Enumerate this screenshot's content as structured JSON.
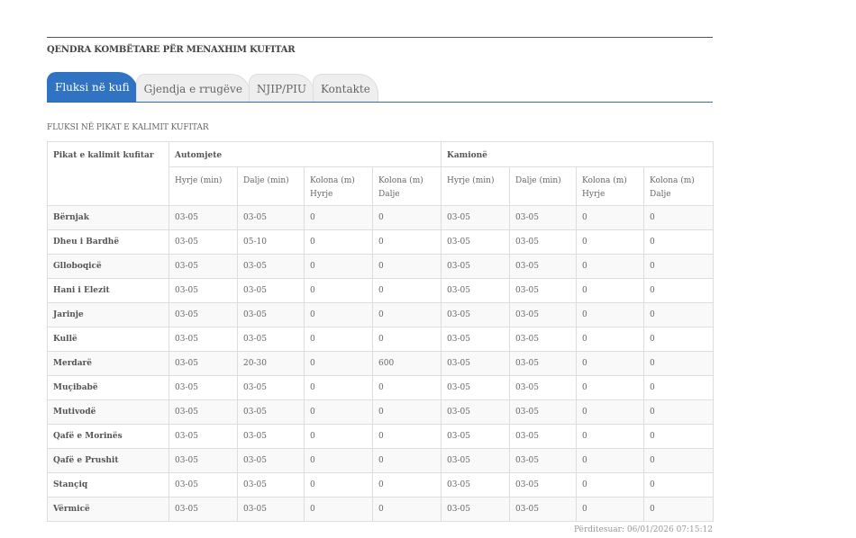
{
  "header": {
    "org_title": "QENDRA KOMBËTARE PËR MENAXHIM KUFITAR"
  },
  "tabs": [
    {
      "label": "Fluksi në kufi",
      "active": true
    },
    {
      "label": "Gjendja e rrugëve"
    },
    {
      "label": "NJIP/PIU"
    },
    {
      "label": "Kontakte"
    }
  ],
  "section_title": "FLUKSI NË PIKAT E KALIMIT KUFITAR",
  "table": {
    "col_point": "Pikat e kalimit kufitar",
    "group_cars": "Automjete",
    "group_trucks": "Kamionë",
    "subcols": [
      "Hyrje (min)",
      "Dalje (min)",
      "Kolona (m) Hyrje",
      "Kolona (m) Dalje",
      "Hyrje (min)",
      "Dalje (min)",
      "Kolona (m) Hyrje",
      "Kolona (m) Dalje"
    ],
    "rows": [
      [
        "Bërnjak",
        "03-05",
        "03-05",
        "0",
        "0",
        "03-05",
        "03-05",
        "0",
        "0"
      ],
      [
        "Dheu i Bardhë",
        "03-05",
        "05-10",
        "0",
        "0",
        "03-05",
        "03-05",
        "0",
        "0"
      ],
      [
        "Glloboqicë",
        "03-05",
        "03-05",
        "0",
        "0",
        "03-05",
        "03-05",
        "0",
        "0"
      ],
      [
        "Hani i Elezit",
        "03-05",
        "03-05",
        "0",
        "0",
        "03-05",
        "03-05",
        "0",
        "0"
      ],
      [
        "Jarinje",
        "03-05",
        "03-05",
        "0",
        "0",
        "03-05",
        "03-05",
        "0",
        "0"
      ],
      [
        "Kullë",
        "03-05",
        "03-05",
        "0",
        "0",
        "03-05",
        "03-05",
        "0",
        "0"
      ],
      [
        "Merdarë",
        "03-05",
        "20-30",
        "0",
        "600",
        "03-05",
        "03-05",
        "0",
        "0"
      ],
      [
        "Muçibabë",
        "03-05",
        "03-05",
        "0",
        "0",
        "03-05",
        "03-05",
        "0",
        "0"
      ],
      [
        "Mutivodë",
        "03-05",
        "03-05",
        "0",
        "0",
        "03-05",
        "03-05",
        "0",
        "0"
      ],
      [
        "Qafë e Morinës",
        "03-05",
        "03-05",
        "0",
        "0",
        "03-05",
        "03-05",
        "0",
        "0"
      ],
      [
        "Qafë e Prushit",
        "03-05",
        "03-05",
        "0",
        "0",
        "03-05",
        "03-05",
        "0",
        "0"
      ],
      [
        "Stançiq",
        "03-05",
        "03-05",
        "0",
        "0",
        "03-05",
        "03-05",
        "0",
        "0"
      ],
      [
        "Vërmicë",
        "03-05",
        "03-05",
        "0",
        "0",
        "03-05",
        "03-05",
        "0",
        "0"
      ]
    ]
  },
  "updated": "Përditesuar: 06/01/2026 07:15:12"
}
